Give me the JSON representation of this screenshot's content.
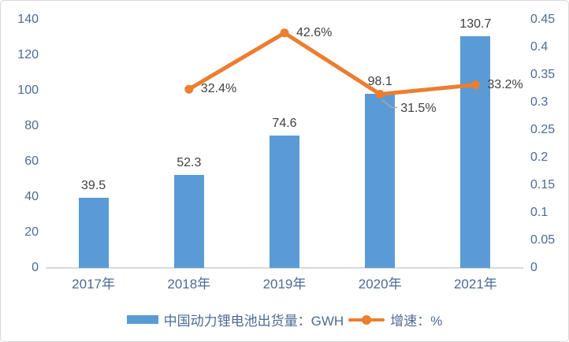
{
  "chart_data": {
    "type": "combo-bar-line",
    "title": "",
    "categories": [
      "2017年",
      "2018年",
      "2019年",
      "2020年",
      "2021年"
    ],
    "series": [
      {
        "name": "中国动力锂电池出货量：GWH",
        "type": "bar",
        "axis": "left",
        "values": [
          39.5,
          52.3,
          74.6,
          98.1,
          130.7
        ],
        "data_labels": [
          "39.5",
          "52.3",
          "74.6",
          "98.1",
          "130.7"
        ],
        "color": "#5b9bd5"
      },
      {
        "name": "增速：%",
        "type": "line",
        "axis": "right",
        "values": [
          null,
          0.324,
          0.426,
          0.315,
          0.332
        ],
        "data_labels": [
          null,
          "32.4%",
          "42.6%",
          "31.5%",
          "33.2%"
        ],
        "label_placement": [
          null,
          "right",
          "right",
          "leader-below",
          "right"
        ],
        "color": "#ed7d31"
      }
    ],
    "left_axis": {
      "min": 0,
      "max": 140,
      "step": 20,
      "tick_labels": [
        "0",
        "20",
        "40",
        "60",
        "80",
        "100",
        "120",
        "140"
      ]
    },
    "right_axis": {
      "min": 0,
      "max": 0.45,
      "step": 0.05,
      "tick_labels": [
        "0",
        "0.05",
        "0.1",
        "0.15",
        "0.2",
        "0.25",
        "0.3",
        "0.35",
        "0.4",
        "0.45"
      ]
    },
    "grid": false,
    "legend_position": "bottom"
  },
  "legend": {
    "items": [
      {
        "label": "中国动力锂电池出货量：GWH",
        "marker": "bar-swatch",
        "color": "#5b9bd5"
      },
      {
        "label": "增速：%",
        "marker": "line-dot",
        "color": "#ed7d31"
      }
    ]
  },
  "colors": {
    "bar": "#5b9bd5",
    "line": "#ed7d31",
    "axis_text": "#4d6a96",
    "data_label": "#404040",
    "axis_line": "#d9d9d9",
    "leader_line": "#a6a6a6",
    "figure_border": "#d9d9d9",
    "background": "#ffffff"
  }
}
